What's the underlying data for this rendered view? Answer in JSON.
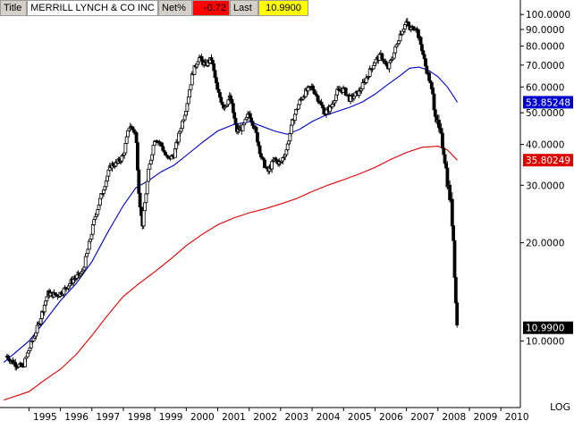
{
  "header": {
    "title_label": "Title",
    "title_value": "MERRILL LYNCH & CO INC",
    "net_label": "Net%",
    "net_value": "-0.72",
    "last_label": "Last",
    "last_value": "10.9900"
  },
  "colors": {
    "candles": "#000000",
    "ma_short": "#0000cc",
    "ma_long": "#dd0000",
    "net_bg": "#ff0000",
    "last_bg": "#ffff00",
    "panel_bg": "#ffffff",
    "axis": "#000000"
  },
  "chart_data": {
    "type": "candlestick",
    "scale": "log",
    "ylim": [
      6.5,
      108
    ],
    "xlim": [
      1994.25,
      2010.45
    ],
    "y_ticks": [
      "100.0000",
      "90.0000",
      "80.0000",
      "70.0000",
      "60.0000",
      "50.0000",
      "40.0000",
      "30.0000",
      "20.0000",
      "10.0000"
    ],
    "y_tick_values": [
      100,
      90,
      80,
      70,
      60,
      50,
      40,
      30,
      20,
      10
    ],
    "x_ticks": [
      "1995",
      "1996",
      "1997",
      "1998",
      "1999",
      "2000",
      "2001",
      "2002",
      "2003",
      "2004",
      "2005",
      "2006",
      "2007",
      "2008",
      "2009",
      "2010"
    ],
    "x_tick_values": [
      1995,
      1996,
      1997,
      1998,
      1999,
      2000,
      2001,
      2002,
      2003,
      2004,
      2005,
      2006,
      2007,
      2008,
      2009,
      2010
    ],
    "scale_label": "LOG",
    "price_anchors": [
      [
        1994.3,
        9.0
      ],
      [
        1994.5,
        8.6
      ],
      [
        1994.8,
        8.3
      ],
      [
        1995.0,
        9.4
      ],
      [
        1995.3,
        11.2
      ],
      [
        1995.6,
        14.0
      ],
      [
        1995.9,
        13.8
      ],
      [
        1996.1,
        14.3
      ],
      [
        1996.4,
        15.4
      ],
      [
        1996.7,
        16.2
      ],
      [
        1996.9,
        19.5
      ],
      [
        1997.1,
        24.0
      ],
      [
        1997.4,
        30.0
      ],
      [
        1997.6,
        34.5
      ],
      [
        1997.8,
        35.0
      ],
      [
        1998.0,
        37.0
      ],
      [
        1998.2,
        46.0
      ],
      [
        1998.4,
        43.0
      ],
      [
        1998.5,
        28.0
      ],
      [
        1998.6,
        22.5
      ],
      [
        1998.8,
        33.0
      ],
      [
        1999.0,
        42.0
      ],
      [
        1999.2,
        40.0
      ],
      [
        1999.4,
        36.0
      ],
      [
        1999.6,
        37.0
      ],
      [
        1999.8,
        44.0
      ],
      [
        2000.0,
        52.0
      ],
      [
        2000.2,
        66.0
      ],
      [
        2000.4,
        74.0
      ],
      [
        2000.6,
        70.0
      ],
      [
        2000.8,
        73.0
      ],
      [
        2001.0,
        58.0
      ],
      [
        2001.2,
        52.0
      ],
      [
        2001.4,
        56.0
      ],
      [
        2001.6,
        44.0
      ],
      [
        2001.8,
        45.0
      ],
      [
        2002.0,
        50.0
      ],
      [
        2002.2,
        44.0
      ],
      [
        2002.4,
        36.0
      ],
      [
        2002.6,
        33.0
      ],
      [
        2002.8,
        36.0
      ],
      [
        2003.0,
        35.0
      ],
      [
        2003.2,
        39.0
      ],
      [
        2003.4,
        48.0
      ],
      [
        2003.6,
        54.0
      ],
      [
        2003.8,
        58.0
      ],
      [
        2004.0,
        60.0
      ],
      [
        2004.2,
        55.0
      ],
      [
        2004.4,
        50.0
      ],
      [
        2004.6,
        52.0
      ],
      [
        2004.8,
        58.0
      ],
      [
        2005.0,
        59.0
      ],
      [
        2005.2,
        55.0
      ],
      [
        2005.5,
        58.0
      ],
      [
        2005.8,
        66.0
      ],
      [
        2006.0,
        72.0
      ],
      [
        2006.2,
        75.0
      ],
      [
        2006.4,
        68.0
      ],
      [
        2006.6,
        76.0
      ],
      [
        2006.8,
        87.0
      ],
      [
        2007.0,
        95.0
      ],
      [
        2007.1,
        90.0
      ],
      [
        2007.3,
        92.0
      ],
      [
        2007.5,
        78.0
      ],
      [
        2007.6,
        70.0
      ],
      [
        2007.75,
        62.0
      ],
      [
        2007.9,
        52.0
      ],
      [
        2008.0,
        45.0
      ],
      [
        2008.1,
        42.0
      ],
      [
        2008.2,
        38.0
      ],
      [
        2008.3,
        31.0
      ],
      [
        2008.42,
        26.0
      ],
      [
        2008.5,
        20.0
      ],
      [
        2008.56,
        13.5
      ],
      [
        2008.62,
        10.99
      ]
    ],
    "series": [
      {
        "name": "53.85248",
        "points": [
          [
            1994.2,
            8.6
          ],
          [
            1995.0,
            10.0
          ],
          [
            1995.5,
            11.5
          ],
          [
            1996.0,
            13.3
          ],
          [
            1996.5,
            15.0
          ],
          [
            1997.0,
            17.5
          ],
          [
            1997.5,
            21.5
          ],
          [
            1998.0,
            26.0
          ],
          [
            1998.4,
            29.5
          ],
          [
            1998.8,
            31.0
          ],
          [
            1999.2,
            33.0
          ],
          [
            1999.6,
            34.5
          ],
          [
            2000.0,
            37.0
          ],
          [
            2000.5,
            40.5
          ],
          [
            2001.0,
            44.0
          ],
          [
            2001.5,
            46.0
          ],
          [
            2002.0,
            47.0
          ],
          [
            2002.4,
            45.5
          ],
          [
            2002.8,
            44.0
          ],
          [
            2003.2,
            43.0
          ],
          [
            2003.6,
            44.5
          ],
          [
            2004.0,
            47.0
          ],
          [
            2004.4,
            49.0
          ],
          [
            2004.8,
            50.5
          ],
          [
            2005.2,
            52.0
          ],
          [
            2005.6,
            54.0
          ],
          [
            2006.0,
            57.0
          ],
          [
            2006.4,
            61.0
          ],
          [
            2006.8,
            65.0
          ],
          [
            2007.1,
            68.5
          ],
          [
            2007.4,
            69.0
          ],
          [
            2007.7,
            67.5
          ],
          [
            2008.0,
            64.5
          ],
          [
            2008.3,
            60.0
          ],
          [
            2008.62,
            53.85
          ]
        ]
      },
      {
        "name": "35.80249",
        "points": [
          [
            1994.2,
            6.6
          ],
          [
            1995.0,
            7.0
          ],
          [
            1995.5,
            7.6
          ],
          [
            1996.0,
            8.2
          ],
          [
            1996.5,
            9.1
          ],
          [
            1997.0,
            10.4
          ],
          [
            1997.5,
            12.0
          ],
          [
            1998.0,
            13.7
          ],
          [
            1998.5,
            15.0
          ],
          [
            1999.0,
            16.3
          ],
          [
            1999.5,
            17.8
          ],
          [
            2000.0,
            19.6
          ],
          [
            2000.5,
            21.2
          ],
          [
            2001.0,
            22.7
          ],
          [
            2001.5,
            23.8
          ],
          [
            2002.0,
            24.7
          ],
          [
            2002.5,
            25.4
          ],
          [
            2003.0,
            26.3
          ],
          [
            2003.5,
            27.3
          ],
          [
            2004.0,
            28.7
          ],
          [
            2004.5,
            30.0
          ],
          [
            2005.0,
            31.2
          ],
          [
            2005.5,
            32.5
          ],
          [
            2006.0,
            34.0
          ],
          [
            2006.5,
            36.0
          ],
          [
            2007.0,
            37.8
          ],
          [
            2007.5,
            39.2
          ],
          [
            2008.0,
            39.5
          ],
          [
            2008.3,
            38.5
          ],
          [
            2008.62,
            35.8
          ]
        ]
      }
    ],
    "series_labels": [
      "53.85248",
      "35.80249",
      "10.9900"
    ]
  }
}
